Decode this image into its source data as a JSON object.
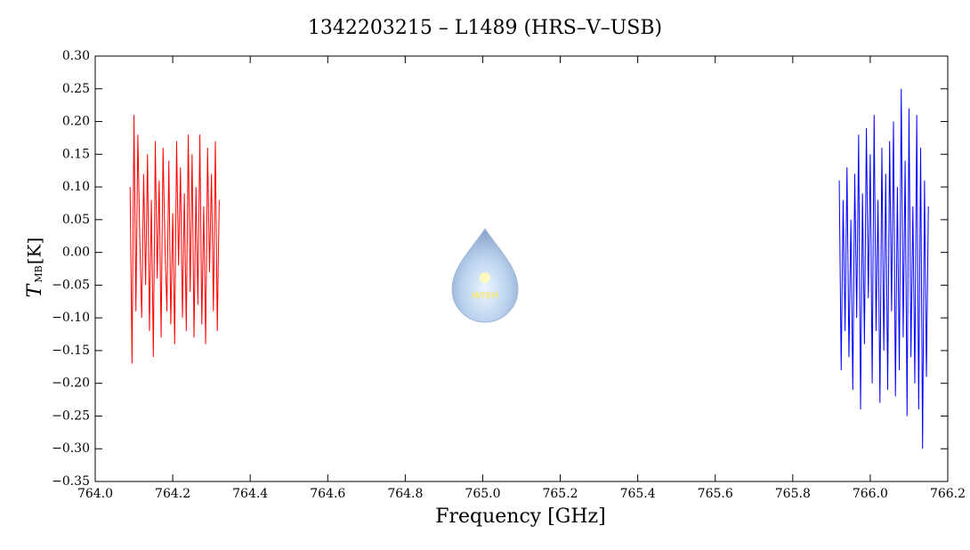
{
  "chart_data": {
    "type": "line",
    "title": "1342203215 – L1489 (HRS–V–USB)",
    "x_label": "Frequency [GHz]",
    "y_label": "T",
    "y_label_sub": "MB",
    "y_label_unit": "[K]",
    "logo_text": "WISH",
    "xlim": [
      764.0,
      766.2
    ],
    "ylim": [
      -0.35,
      0.3
    ],
    "xticks": [
      {
        "value": 764.0,
        "label": "764.0"
      },
      764.2,
      764.4,
      764.6,
      764.8,
      {
        "value": 765.0,
        "label": "765.0"
      },
      765.2,
      765.4,
      765.6,
      765.8,
      {
        "value": 766.0,
        "label": "766.0"
      },
      766.2
    ],
    "yticks": [
      {
        "value": -0.35,
        "label": "−0.35"
      },
      {
        "value": -0.3,
        "label": "−0.30"
      },
      {
        "value": -0.25,
        "label": "−0.25"
      },
      {
        "value": -0.2,
        "label": "−0.20"
      },
      {
        "value": -0.15,
        "label": "−0.15"
      },
      {
        "value": -0.1,
        "label": "−0.10"
      },
      {
        "value": -0.05,
        "label": "−0.05"
      },
      {
        "value": 0,
        "label": "0.00"
      },
      0.05,
      {
        "value": 0.1,
        "label": "0.10"
      },
      0.15,
      {
        "value": 0.2,
        "label": "0.20"
      },
      0.25,
      {
        "value": 0.3,
        "label": "0.30"
      }
    ],
    "series": [
      {
        "color": "#ff0000",
        "x": [
          764.09,
          764.095,
          764.1,
          764.105,
          764.11,
          764.115,
          764.12,
          764.125,
          764.13,
          764.135,
          764.14,
          764.145,
          764.15,
          764.155,
          764.16,
          764.165,
          764.17,
          764.175,
          764.18,
          764.185,
          764.19,
          764.195,
          764.2,
          764.205,
          764.21,
          764.215,
          764.22,
          764.225,
          764.23,
          764.235,
          764.24,
          764.245,
          764.25,
          764.255,
          764.26,
          764.265,
          764.27,
          764.275,
          764.28,
          764.285,
          764.29,
          764.295,
          764.3,
          764.305,
          764.31,
          764.315,
          764.32
        ],
        "values": [
          0.1,
          -0.17,
          0.21,
          -0.09,
          0.18,
          0.02,
          -0.1,
          0.12,
          -0.05,
          0.15,
          -0.12,
          0.08,
          -0.16,
          0.17,
          -0.04,
          0.11,
          -0.13,
          0.16,
          0.01,
          -0.09,
          0.14,
          -0.11,
          0.06,
          -0.14,
          0.17,
          -0.02,
          0.13,
          -0.1,
          0.09,
          -0.12,
          0.18,
          -0.06,
          0.15,
          -0.13,
          0.1,
          -0.08,
          0.18,
          -0.11,
          0.07,
          -0.14,
          0.16,
          -0.03,
          0.12,
          -0.09,
          0.17,
          -0.12,
          0.08
        ]
      },
      {
        "color": "#0000ff",
        "x": [
          765.92,
          765.925,
          765.93,
          765.935,
          765.94,
          765.945,
          765.95,
          765.955,
          765.96,
          765.965,
          765.97,
          765.975,
          765.98,
          765.985,
          765.99,
          765.995,
          766.0,
          766.005,
          766.01,
          766.015,
          766.02,
          766.025,
          766.03,
          766.035,
          766.04,
          766.045,
          766.05,
          766.055,
          766.06,
          766.065,
          766.07,
          766.075,
          766.08,
          766.085,
          766.09,
          766.095,
          766.1,
          766.105,
          766.11,
          766.115,
          766.12,
          766.125,
          766.13,
          766.135,
          766.14,
          766.145,
          766.15
        ],
        "values": [
          0.11,
          -0.18,
          0.08,
          -0.12,
          0.13,
          -0.16,
          0.05,
          -0.21,
          0.12,
          -0.1,
          0.18,
          -0.24,
          0.09,
          -0.14,
          0.19,
          -0.07,
          0.15,
          -0.2,
          0.21,
          -0.12,
          0.08,
          -0.23,
          0.16,
          -0.15,
          0.12,
          -0.21,
          0.17,
          -0.09,
          0.2,
          -0.22,
          0.1,
          -0.18,
          0.25,
          -0.13,
          0.14,
          -0.25,
          0.22,
          -0.16,
          0.07,
          -0.2,
          0.21,
          -0.24,
          0.16,
          -0.3,
          0.11,
          -0.19,
          0.07
        ]
      }
    ]
  }
}
